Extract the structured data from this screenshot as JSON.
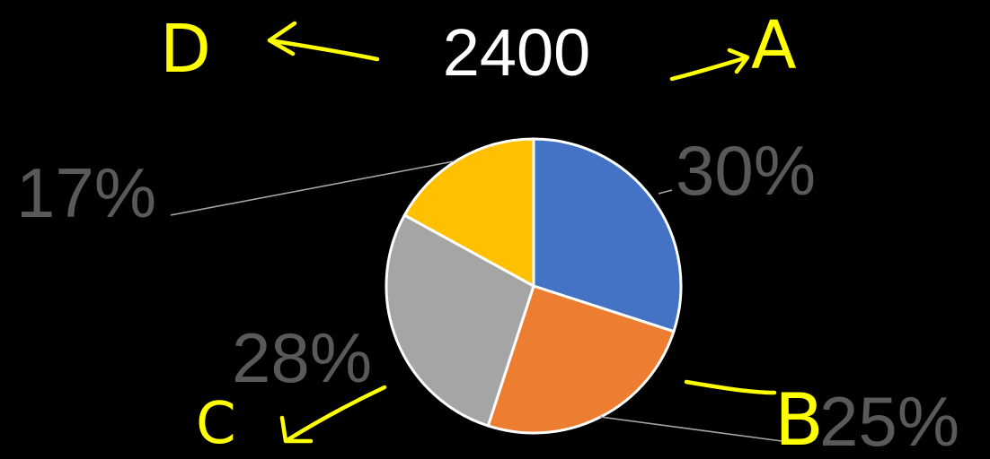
{
  "chart_data": {
    "type": "pie",
    "title": "2400",
    "categories": [
      "A",
      "B",
      "C",
      "D"
    ],
    "values": [
      30,
      25,
      28,
      17
    ],
    "labels": [
      "30%",
      "25%",
      "28%",
      "17%"
    ],
    "colors": [
      "#4472c4",
      "#ed7d31",
      "#a5a5a5",
      "#ffc000"
    ],
    "start_angle_deg": 0,
    "direction": "clockwise"
  },
  "annotations": {
    "color": "#ffff00",
    "letters": {
      "A": "A",
      "B": "B",
      "C": "C",
      "D": "D"
    }
  }
}
